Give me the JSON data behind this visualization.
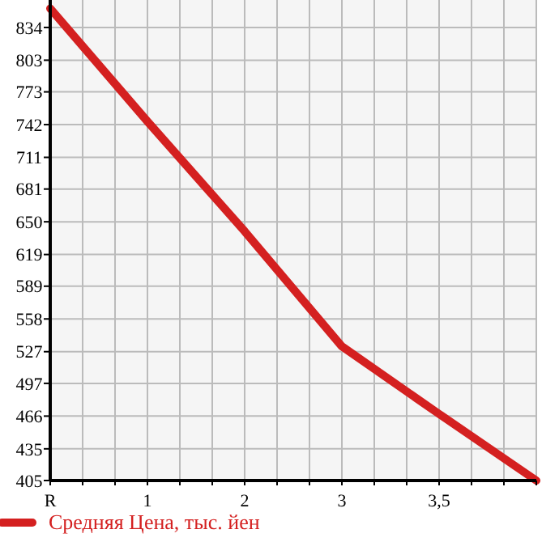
{
  "chart_data": {
    "type": "line",
    "categories": [
      "R",
      "1",
      "2",
      "3",
      "3,5",
      null
    ],
    "series": [
      {
        "name": "Средняя Цена, тыс. йен",
        "color": "#d42020",
        "values": [
          852,
          745,
          641,
          532,
          468,
          405
        ]
      }
    ],
    "ylim": [
      405,
      860
    ],
    "yticks": [
      405,
      435,
      466,
      497,
      527,
      558,
      589,
      619,
      650,
      681,
      711,
      742,
      773,
      803,
      834
    ],
    "grid": true,
    "legend": "bottom",
    "marker": "none",
    "line_style": "solid"
  }
}
